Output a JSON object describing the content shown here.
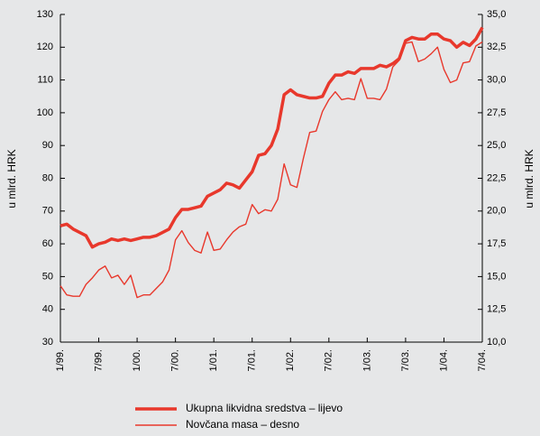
{
  "chart_data": {
    "type": "line",
    "y_label": "u mlrd. HRK",
    "y2_label": "u mlrd. HRK",
    "categories": [
      "1/99.",
      null,
      null,
      null,
      null,
      null,
      "7/99.",
      null,
      null,
      null,
      null,
      null,
      "1/00.",
      null,
      null,
      null,
      null,
      null,
      "7/00.",
      null,
      null,
      null,
      null,
      null,
      "1/01.",
      null,
      null,
      null,
      null,
      null,
      "7/01.",
      null,
      null,
      null,
      null,
      null,
      "1/02.",
      null,
      null,
      null,
      null,
      null,
      "7/02.",
      null,
      null,
      null,
      null,
      null,
      "1/03.",
      null,
      null,
      null,
      null,
      null,
      "7/03.",
      null,
      null,
      null,
      null,
      null,
      "1/04.",
      null,
      null,
      null,
      null,
      null,
      "7/04."
    ],
    "ylim": [
      30,
      130
    ],
    "yticks": [
      30,
      40,
      50,
      60,
      70,
      80,
      90,
      100,
      110,
      120,
      130
    ],
    "y2lim": [
      10,
      35
    ],
    "y2ticks": [
      {
        "value": 10,
        "label": "10,0"
      },
      {
        "value": 12.5,
        "label": "12,5"
      },
      {
        "value": 15,
        "label": "15,0"
      },
      {
        "value": 17.5,
        "label": "17,5"
      },
      {
        "value": 20,
        "label": "20,0"
      },
      {
        "value": 22.5,
        "label": "22,5"
      },
      {
        "value": 25,
        "label": "25,0"
      },
      {
        "value": 27.5,
        "label": "27,5"
      },
      {
        "value": 30,
        "label": "30,0"
      },
      {
        "value": 32.5,
        "label": "32,5"
      },
      {
        "value": 35,
        "label": "35,0"
      }
    ],
    "grid": false,
    "series": [
      {
        "name": "Ukupna likvidna sredstva – lijevo",
        "color": "#e8382c",
        "axis": "y",
        "values": [
          65.5,
          66,
          64.5,
          63.5,
          62.5,
          59,
          60,
          60.5,
          61.5,
          61,
          61.5,
          61,
          61.5,
          62,
          62,
          62.5,
          63.5,
          64.5,
          68,
          70.5,
          70.5,
          71,
          71.5,
          74.5,
          75.5,
          76.5,
          78.5,
          78,
          77,
          79.5,
          82,
          87,
          87.5,
          90,
          95,
          105.5,
          107,
          105.5,
          105,
          104.5,
          104.5,
          105,
          109,
          111.5,
          111.5,
          112.5,
          112,
          113.5,
          113.5,
          113.5,
          114.5,
          114,
          115,
          116.5,
          122,
          123,
          122.5,
          122.5,
          124,
          124,
          122.5,
          122,
          120,
          121.5,
          120.5,
          122.5,
          126
        ]
      },
      {
        "name": "Novčana masa – desno",
        "color": "#e8382c",
        "axis": "y2",
        "values": [
          14.3,
          13.6,
          13.5,
          13.5,
          14.4,
          14.9,
          15.5,
          15.8,
          14.9,
          15.1,
          14.4,
          15.1,
          13.4,
          13.6,
          13.6,
          14.1,
          14.6,
          15.5,
          17.8,
          18.5,
          17.6,
          17.0,
          16.8,
          18.4,
          17.0,
          17.1,
          17.8,
          18.4,
          18.8,
          19.0,
          20.5,
          19.8,
          20.1,
          20.0,
          20.9,
          23.6,
          22.0,
          21.8,
          24.0,
          26.0,
          26.1,
          27.6,
          28.5,
          29.1,
          28.5,
          28.6,
          28.5,
          30.1,
          28.6,
          28.6,
          28.5,
          29.3,
          31.0,
          31.5,
          32.8,
          32.9,
          31.4,
          31.6,
          32.0,
          32.5,
          30.8,
          29.8,
          30.0,
          31.3,
          31.4,
          32.6,
          32.9
        ]
      }
    ]
  }
}
